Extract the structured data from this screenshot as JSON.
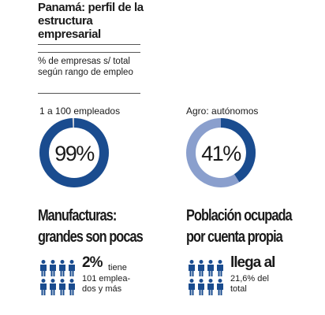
{
  "title": "Panamá: perfil de la estructura empresarial",
  "subtitle": "% de empresas s/ total según rango de empleo",
  "colors": {
    "dark_blue": "#1a4c8f",
    "light_blue": "#8a9fcd",
    "track_gray": "#c9cdd6"
  },
  "chart_data": [
    {
      "type": "pie",
      "label": "1 a 100 empleados",
      "values": [
        99,
        1
      ],
      "center_text": "99%"
    },
    {
      "type": "pie",
      "label": "Agro: autónomos",
      "values": [
        41,
        59
      ],
      "center_text": "41%"
    }
  ],
  "left": {
    "heading_line1": "Manufacturas:",
    "heading_line2": "grandes son pocas",
    "big_value": "2%",
    "text_1": "tiene",
    "text_2": "101 emplea-",
    "text_3": "dos y más",
    "icon": "person-icon"
  },
  "right": {
    "heading_line1": "Población ocupada",
    "heading_line2": "por cuenta propia",
    "big_value": "llega al",
    "text_1": "21,6% del",
    "text_2": "total",
    "icon": "person-icon"
  }
}
